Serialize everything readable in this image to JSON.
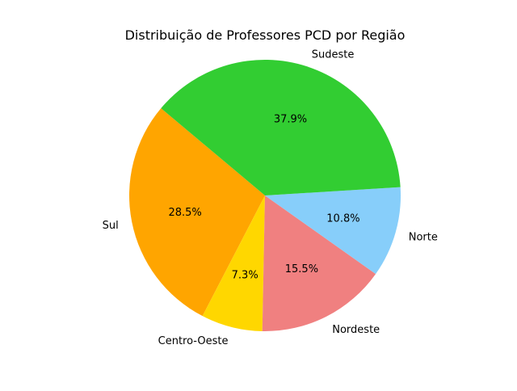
{
  "chart_data": {
    "type": "pie",
    "title": "Distribuição de Professores PCD por Região",
    "start_angle_deg": 140,
    "direction": "counterclockwise",
    "slices": [
      {
        "label": "Sul",
        "value": 28.5,
        "pct_label": "28.5%",
        "color": "#ffa500"
      },
      {
        "label": "Centro-Oeste",
        "value": 7.3,
        "pct_label": "7.3%",
        "color": "#ffd700"
      },
      {
        "label": "Nordeste",
        "value": 15.5,
        "pct_label": "15.5%",
        "color": "#f08080"
      },
      {
        "label": "Norte",
        "value": 10.8,
        "pct_label": "10.8%",
        "color": "#87cefa"
      },
      {
        "label": "Sudeste",
        "value": 37.9,
        "pct_label": "37.9%",
        "color": "#32cd32"
      }
    ]
  }
}
